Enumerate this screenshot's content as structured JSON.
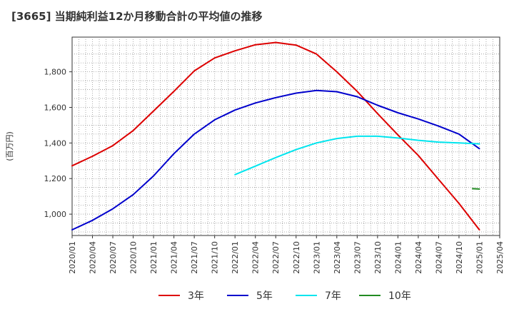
{
  "chart_data": {
    "type": "line",
    "title": "[3665]  当期純利益12か月移動合計の平均値の推移",
    "ylabel": "(百万円)",
    "xlabel": "",
    "ylim": [
      880,
      1995
    ],
    "y_ticks": [
      1000,
      1200,
      1400,
      1600,
      1800
    ],
    "y_tick_labels": [
      "1,000",
      "1,200",
      "1,400",
      "1,600",
      "1,800"
    ],
    "x_ticks": [
      "2020/01",
      "2020/04",
      "2020/07",
      "2020/10",
      "2021/01",
      "2021/04",
      "2021/07",
      "2021/10",
      "2022/01",
      "2022/04",
      "2022/07",
      "2022/10",
      "2023/01",
      "2023/04",
      "2023/07",
      "2023/10",
      "2024/01",
      "2024/04",
      "2024/07",
      "2024/10",
      "2025/01",
      "2025/04"
    ],
    "grid": true,
    "legend_position": "bottom",
    "series": [
      {
        "name": "3年",
        "color": "#dd0000",
        "points": [
          [
            "2020/01",
            1272
          ],
          [
            "2020/04",
            1325
          ],
          [
            "2020/07",
            1385
          ],
          [
            "2020/10",
            1470
          ],
          [
            "2021/01",
            1580
          ],
          [
            "2021/04",
            1690
          ],
          [
            "2021/07",
            1805
          ],
          [
            "2021/10",
            1878
          ],
          [
            "2022/01",
            1918
          ],
          [
            "2022/04",
            1952
          ],
          [
            "2022/07",
            1965
          ],
          [
            "2022/10",
            1950
          ],
          [
            "2023/01",
            1900
          ],
          [
            "2023/04",
            1800
          ],
          [
            "2023/07",
            1690
          ],
          [
            "2023/10",
            1565
          ],
          [
            "2024/01",
            1445
          ],
          [
            "2024/04",
            1330
          ],
          [
            "2024/07",
            1195
          ],
          [
            "2024/10",
            1060
          ],
          [
            "2025/01",
            912
          ]
        ]
      },
      {
        "name": "5年",
        "color": "#0000cc",
        "points": [
          [
            "2020/01",
            912
          ],
          [
            "2020/04",
            965
          ],
          [
            "2020/07",
            1030
          ],
          [
            "2020/10",
            1110
          ],
          [
            "2021/01",
            1215
          ],
          [
            "2021/04",
            1340
          ],
          [
            "2021/07",
            1450
          ],
          [
            "2021/10",
            1530
          ],
          [
            "2022/01",
            1585
          ],
          [
            "2022/04",
            1625
          ],
          [
            "2022/07",
            1655
          ],
          [
            "2022/10",
            1680
          ],
          [
            "2023/01",
            1695
          ],
          [
            "2023/04",
            1688
          ],
          [
            "2023/07",
            1660
          ],
          [
            "2023/10",
            1612
          ],
          [
            "2024/01",
            1570
          ],
          [
            "2024/04",
            1535
          ],
          [
            "2024/07",
            1495
          ],
          [
            "2024/10",
            1450
          ],
          [
            "2025/01",
            1368
          ]
        ]
      },
      {
        "name": "7年",
        "color": "#00e5ee",
        "points": [
          [
            "2022/01",
            1222
          ],
          [
            "2022/04",
            1270
          ],
          [
            "2022/07",
            1318
          ],
          [
            "2022/10",
            1363
          ],
          [
            "2023/01",
            1400
          ],
          [
            "2023/04",
            1425
          ],
          [
            "2023/07",
            1438
          ],
          [
            "2023/10",
            1438
          ],
          [
            "2024/01",
            1428
          ],
          [
            "2024/04",
            1415
          ],
          [
            "2024/07",
            1405
          ],
          [
            "2024/10",
            1400
          ],
          [
            "2025/01",
            1395
          ]
        ]
      },
      {
        "name": "10年",
        "color": "#228b22",
        "points": [
          [
            "2024/12",
            1143
          ],
          [
            "2025/01",
            1141
          ]
        ]
      }
    ]
  }
}
